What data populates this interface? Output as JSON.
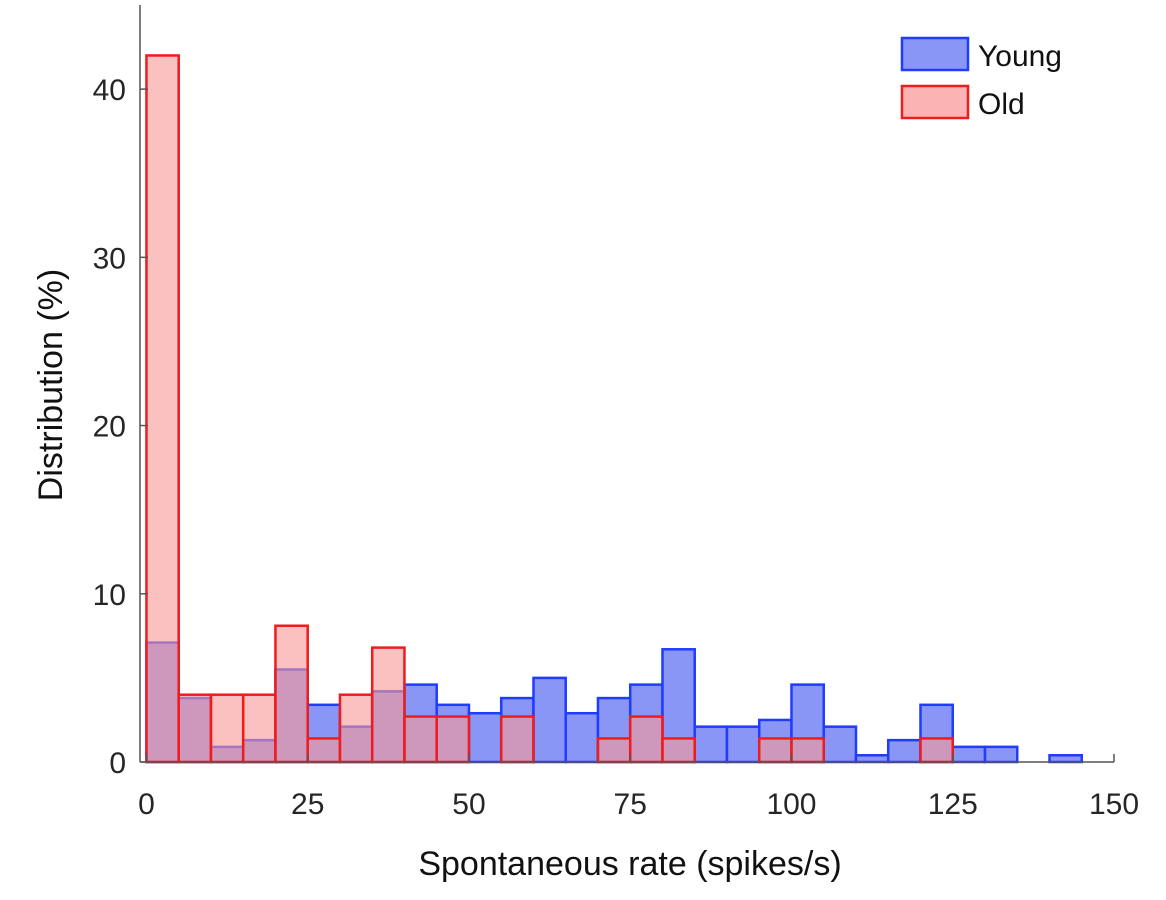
{
  "chart_data": {
    "type": "bar",
    "subtype": "overlapping-histogram",
    "xlabel": "Spontaneous rate (spikes/s)",
    "ylabel": "Distribution (%)",
    "xlim": [
      -1,
      150
    ],
    "ylim": [
      0,
      45
    ],
    "xticks": [
      0,
      25,
      50,
      75,
      100,
      125,
      150
    ],
    "yticks": [
      0,
      10,
      20,
      30,
      40
    ],
    "bin_width": 5,
    "bin_starts": [
      0,
      5,
      10,
      15,
      20,
      25,
      30,
      35,
      40,
      45,
      50,
      55,
      60,
      65,
      70,
      75,
      80,
      85,
      90,
      95,
      100,
      105,
      110,
      115,
      120,
      125,
      130,
      135,
      140
    ],
    "grid": false,
    "legend_position": "top-right",
    "series": [
      {
        "name": "Young",
        "stroke": "#1f3cff",
        "fill": "#8a96f5",
        "values": [
          7.1,
          3.8,
          0.9,
          1.3,
          5.5,
          3.4,
          2.1,
          4.2,
          4.6,
          3.4,
          2.9,
          3.8,
          5.0,
          2.9,
          3.8,
          4.6,
          6.7,
          2.1,
          2.1,
          2.5,
          4.6,
          2.1,
          0.4,
          1.3,
          3.4,
          0.9,
          0.9,
          0.0,
          0.4
        ]
      },
      {
        "name": "Old",
        "stroke": "#ee1c1c",
        "fill": "#f99a9a",
        "values": [
          42.0,
          4.0,
          4.0,
          4.0,
          8.1,
          1.4,
          4.0,
          6.8,
          2.7,
          2.7,
          0.0,
          2.7,
          0.0,
          0.0,
          1.4,
          2.7,
          1.4,
          0.0,
          0.0,
          1.4,
          1.4,
          0.0,
          0.0,
          0.0,
          1.4,
          0.0,
          0.0,
          0.0,
          0.0
        ]
      }
    ]
  }
}
